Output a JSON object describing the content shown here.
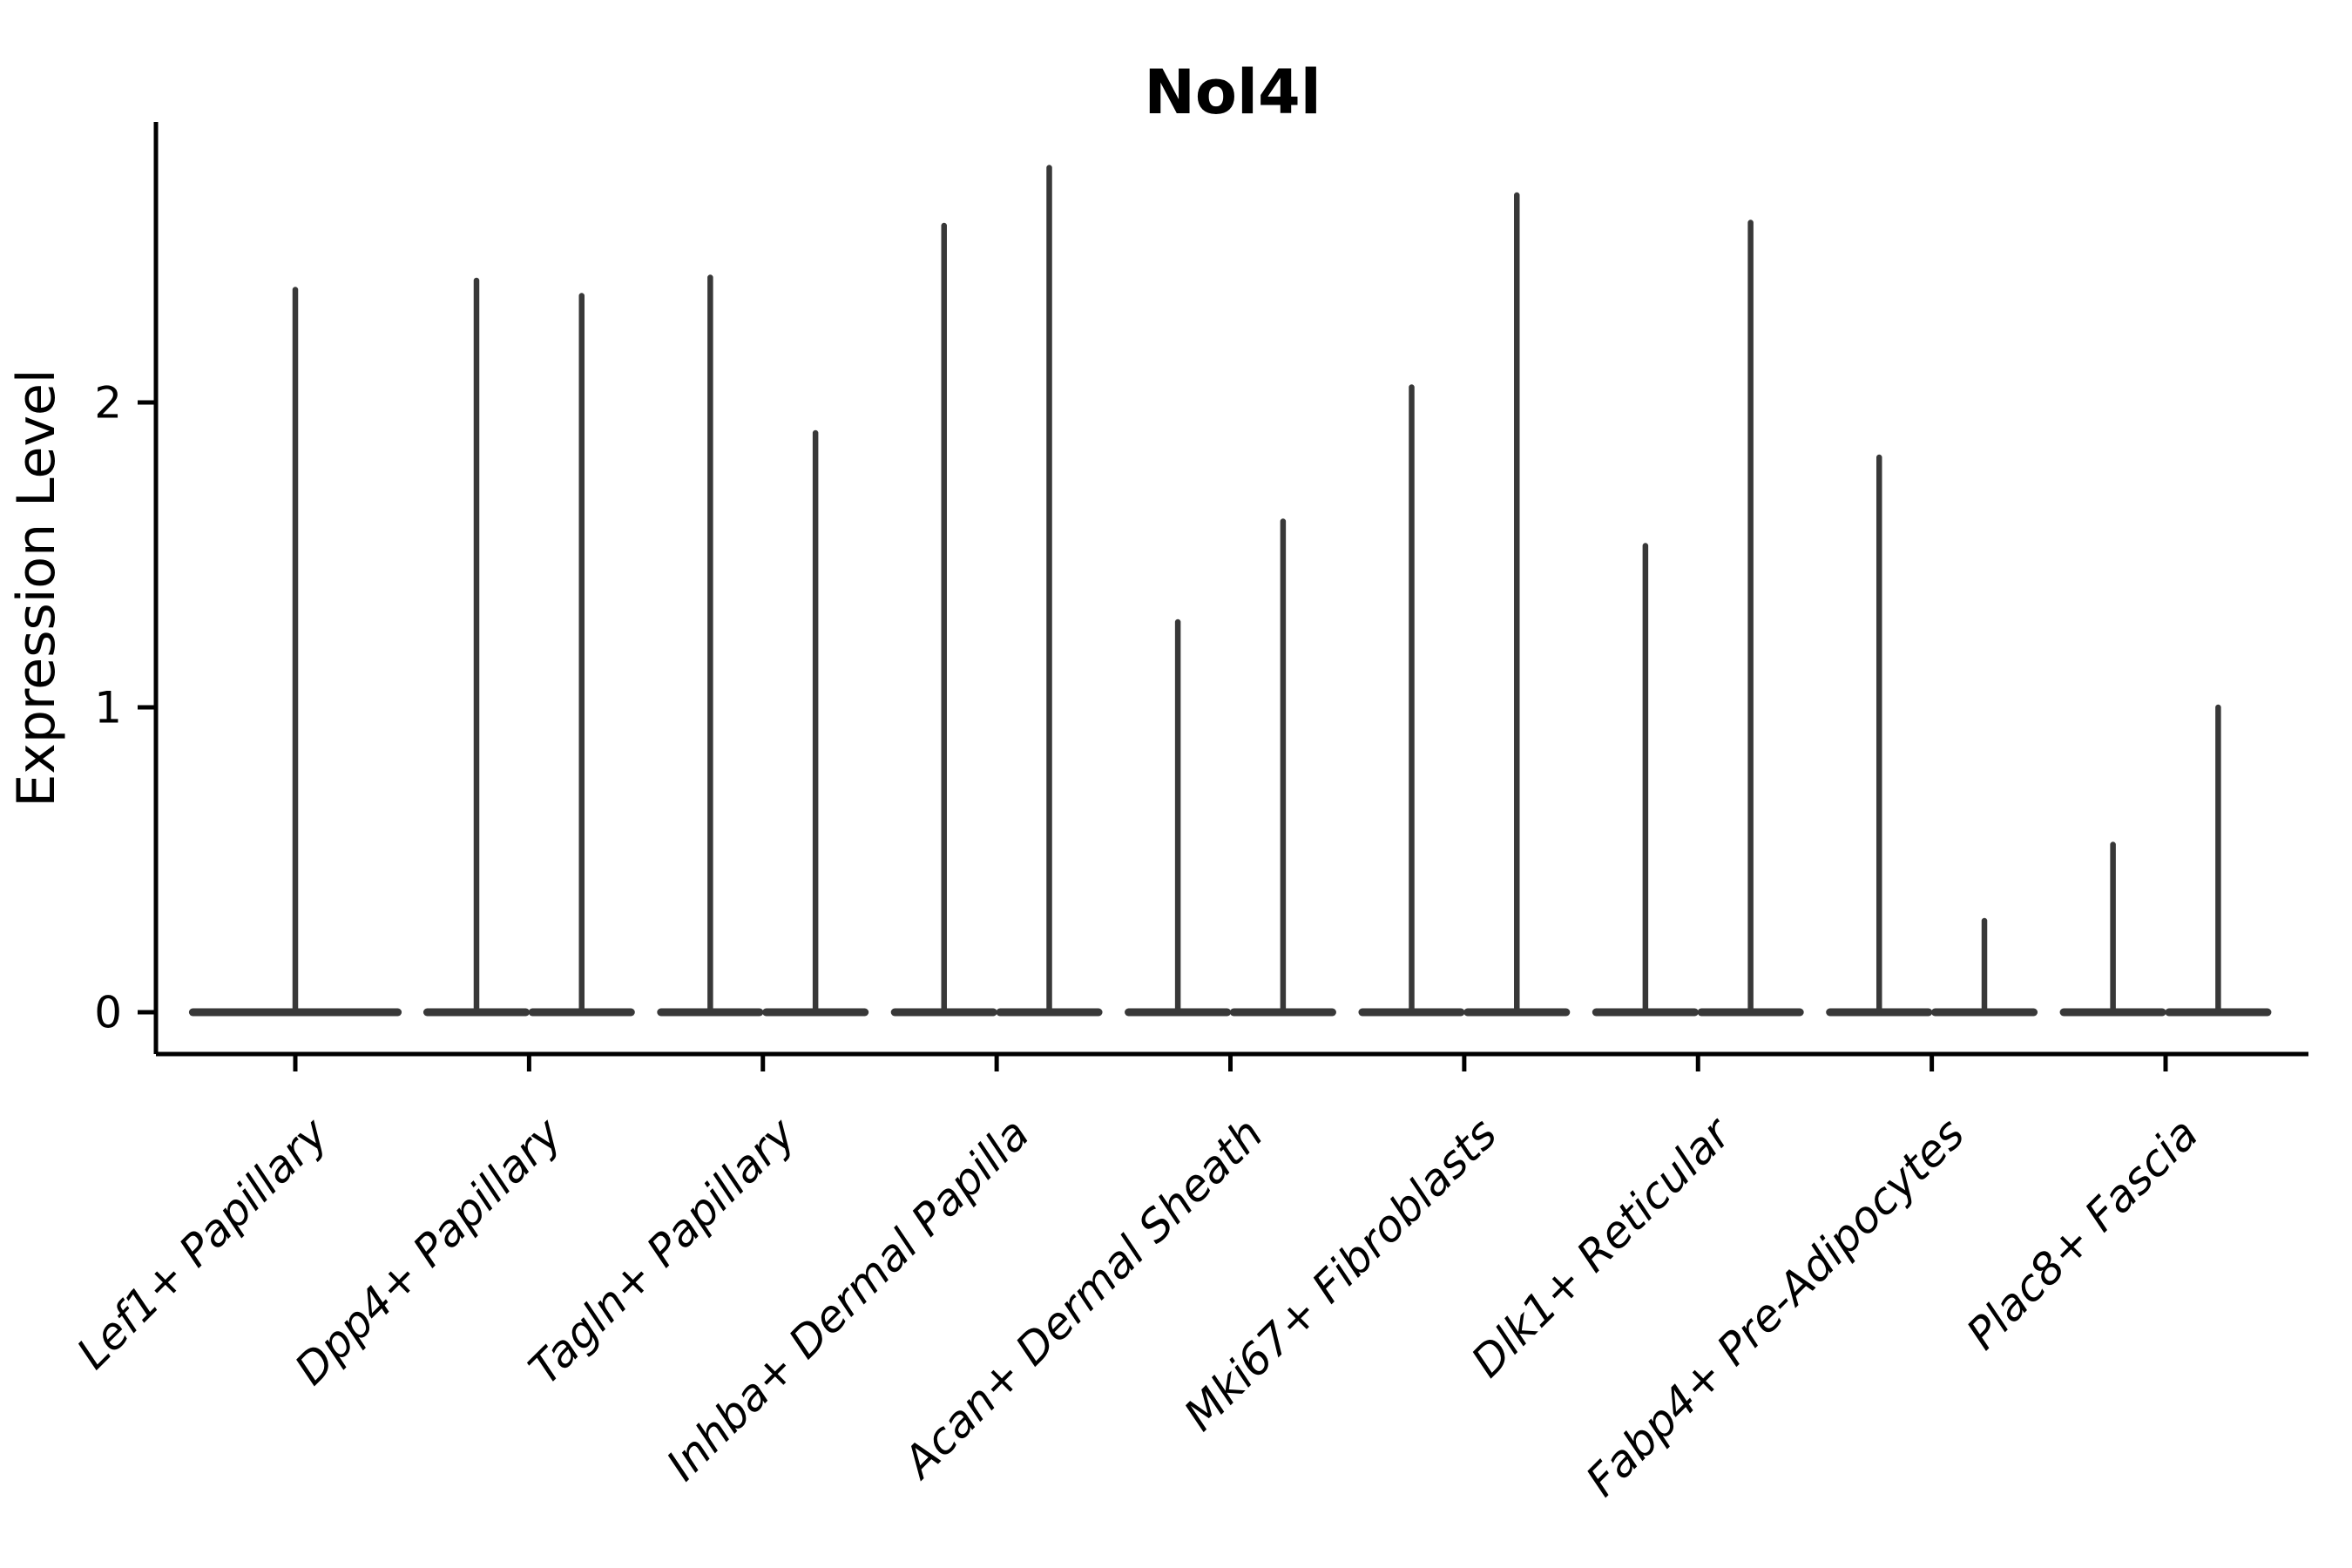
{
  "chart_data": {
    "type": "violin",
    "title": "Nol4l",
    "xlabel": "",
    "ylabel": "Expression Level",
    "yticks": [
      0,
      1,
      2
    ],
    "ylim": [
      -0.14,
      2.92
    ],
    "grid": false,
    "legend": "none",
    "baseline_value": 0,
    "colors": {
      "violin_stroke": "#383838",
      "axis": "#000000",
      "text": "#000000",
      "background": "#ffffff"
    },
    "categories": [
      "Lef1+ Papillary",
      "Dpp4+ Papillary",
      "Tagln+ Papillary",
      "Inhba+ Dermal Papilla",
      "Acan+ Dermal Sheath",
      "Mki67+ Fibroblasts",
      "Dlk1+ Reticular",
      "Fabp4+ Pre-Adipocytes",
      "Plac8+ Fascia"
    ],
    "violins": [
      {
        "category": "Lef1+ Papillary",
        "points": [
          {
            "offset_units": 0,
            "half_width_units": 0.455,
            "min_expression": 0,
            "max_expression": 2.37
          }
        ]
      },
      {
        "category": "Dpp4+ Papillary",
        "points": [
          {
            "offset_units": -0.225,
            "half_width_units": 0.2275,
            "min_expression": 0,
            "max_expression": 2.4
          },
          {
            "offset_units": 0.225,
            "half_width_units": 0.2275,
            "min_expression": 0,
            "max_expression": 2.35
          }
        ]
      },
      {
        "category": "Tagln+ Papillary",
        "points": [
          {
            "offset_units": -0.225,
            "half_width_units": 0.2275,
            "min_expression": 0,
            "max_expression": 2.41
          },
          {
            "offset_units": 0.225,
            "half_width_units": 0.2275,
            "min_expression": 0,
            "max_expression": 1.9
          }
        ]
      },
      {
        "category": "Inhba+ Dermal Papilla",
        "points": [
          {
            "offset_units": -0.225,
            "half_width_units": 0.2275,
            "min_expression": 0,
            "max_expression": 2.58
          },
          {
            "offset_units": 0.225,
            "half_width_units": 0.2275,
            "min_expression": 0,
            "max_expression": 2.77
          }
        ]
      },
      {
        "category": "Acan+ Dermal Sheath",
        "points": [
          {
            "offset_units": -0.225,
            "half_width_units": 0.2275,
            "min_expression": 0,
            "max_expression": 1.28
          },
          {
            "offset_units": 0.225,
            "half_width_units": 0.2275,
            "min_expression": 0,
            "max_expression": 1.61
          }
        ]
      },
      {
        "category": "Mki67+ Fibroblasts",
        "points": [
          {
            "offset_units": -0.225,
            "half_width_units": 0.2275,
            "min_expression": 0,
            "max_expression": 2.05
          },
          {
            "offset_units": 0.225,
            "half_width_units": 0.2275,
            "min_expression": 0,
            "max_expression": 2.68
          }
        ]
      },
      {
        "category": "Dlk1+ Reticular",
        "points": [
          {
            "offset_units": -0.225,
            "half_width_units": 0.2275,
            "min_expression": 0,
            "max_expression": 1.53
          },
          {
            "offset_units": 0.225,
            "half_width_units": 0.2275,
            "min_expression": 0,
            "max_expression": 2.59
          }
        ]
      },
      {
        "category": "Fabp4+ Pre-Adipocytes",
        "points": [
          {
            "offset_units": -0.225,
            "half_width_units": 0.2275,
            "min_expression": 0,
            "max_expression": 1.82
          },
          {
            "offset_units": 0.225,
            "half_width_units": 0.2275,
            "min_expression": 0,
            "max_expression": 0.3
          }
        ]
      },
      {
        "category": "Plac8+ Fascia",
        "points": [
          {
            "offset_units": -0.225,
            "half_width_units": 0.2275,
            "min_expression": 0,
            "max_expression": 0.55
          },
          {
            "offset_units": 0.225,
            "half_width_units": 0.2275,
            "min_expression": 0,
            "max_expression": 1.0
          }
        ]
      }
    ]
  }
}
